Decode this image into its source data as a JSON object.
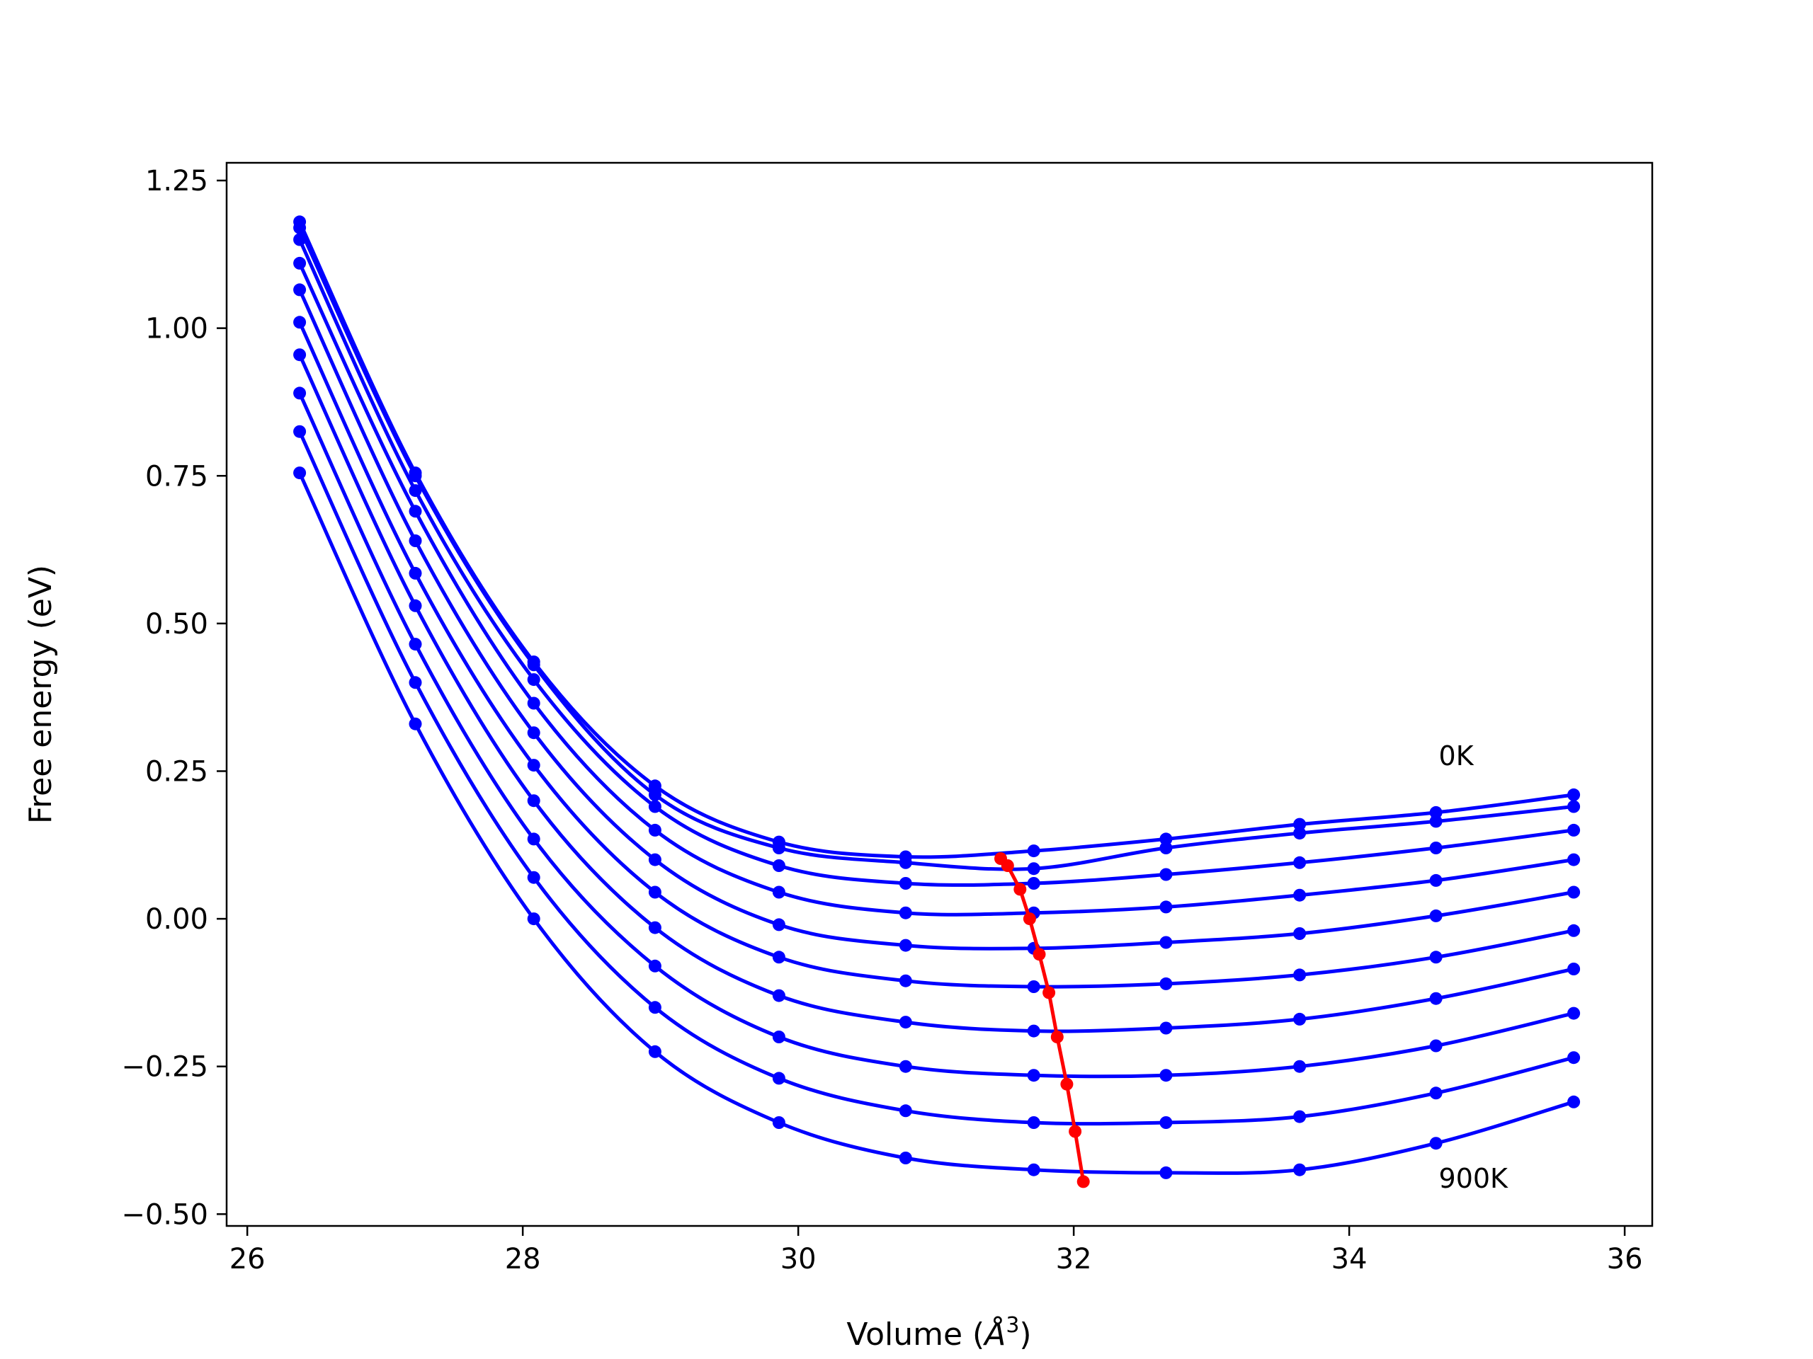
{
  "chart_data": {
    "type": "line",
    "xlabel": "Volume (",
    "xlabel_sym": "Å",
    "xlabel_sup": "3",
    "xlabel_end": ")",
    "ylabel": "Free energy (eV)",
    "xlim": [
      25.85,
      36.2
    ],
    "ylim": [
      -0.52,
      1.28
    ],
    "xticks": [
      26,
      28,
      30,
      32,
      34,
      36
    ],
    "xtick_labels": [
      "26",
      "28",
      "30",
      "32",
      "34",
      "36"
    ],
    "yticks": [
      -0.5,
      -0.25,
      0.0,
      0.25,
      0.5,
      0.75,
      1.0,
      1.25
    ],
    "ytick_labels": [
      "−0.50",
      "−0.25",
      "0.00",
      "0.25",
      "0.50",
      "0.75",
      "1.00",
      "1.25"
    ],
    "grid": false,
    "annotations": [
      {
        "text": "0K",
        "x": 34.65,
        "y": 0.26
      },
      {
        "text": "900K",
        "x": 34.65,
        "y": -0.455
      }
    ],
    "curve_color": "#0000ff",
    "minima_color": "#ff0000",
    "x": [
      26.38,
      27.22,
      28.08,
      28.96,
      29.86,
      30.78,
      31.71,
      32.67,
      33.64,
      34.63,
      35.63
    ],
    "series": [
      {
        "values": [
          1.18,
          0.755,
          0.435,
          0.225,
          0.13,
          0.105,
          0.115,
          0.135,
          0.16,
          0.18,
          0.21
        ]
      },
      {
        "values": [
          1.17,
          0.75,
          0.43,
          0.21,
          0.12,
          0.095,
          0.085,
          0.12,
          0.145,
          0.165,
          0.19
        ]
      },
      {
        "values": [
          1.15,
          0.725,
          0.405,
          0.19,
          0.09,
          0.06,
          0.06,
          0.075,
          0.095,
          0.12,
          0.15
        ]
      },
      {
        "values": [
          1.11,
          0.69,
          0.365,
          0.15,
          0.045,
          0.01,
          0.01,
          0.02,
          0.04,
          0.065,
          0.1
        ]
      },
      {
        "values": [
          1.065,
          0.64,
          0.315,
          0.1,
          -0.01,
          -0.045,
          -0.05,
          -0.04,
          -0.025,
          0.005,
          0.045
        ]
      },
      {
        "values": [
          1.01,
          0.585,
          0.26,
          0.045,
          -0.065,
          -0.105,
          -0.115,
          -0.11,
          -0.095,
          -0.065,
          -0.02
        ]
      },
      {
        "values": [
          0.955,
          0.53,
          0.2,
          -0.015,
          -0.13,
          -0.175,
          -0.19,
          -0.185,
          -0.17,
          -0.135,
          -0.085
        ]
      },
      {
        "values": [
          0.89,
          0.465,
          0.135,
          -0.08,
          -0.2,
          -0.25,
          -0.265,
          -0.265,
          -0.25,
          -0.215,
          -0.16
        ]
      },
      {
        "values": [
          0.825,
          0.4,
          0.07,
          -0.15,
          -0.27,
          -0.325,
          -0.345,
          -0.345,
          -0.335,
          -0.295,
          -0.235
        ]
      },
      {
        "values": [
          0.755,
          0.33,
          0.0,
          -0.225,
          -0.345,
          -0.405,
          -0.425,
          -0.43,
          -0.425,
          -0.38,
          -0.31
        ]
      }
    ],
    "minima": {
      "x": [
        31.47,
        31.52,
        31.61,
        31.68,
        31.75,
        31.82,
        31.88,
        31.95,
        32.01,
        32.07
      ],
      "y": [
        0.102,
        0.09,
        0.05,
        0.0,
        -0.06,
        -0.125,
        -0.2,
        -0.28,
        -0.36,
        -0.445
      ]
    }
  }
}
